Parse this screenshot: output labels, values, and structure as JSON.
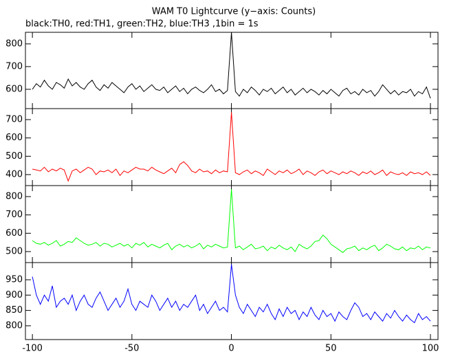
{
  "chart_data": {
    "type": "line",
    "title": "WAM T0 Lightcurve (y−axis: Counts)",
    "subtitle": "black:TH0, red:TH1, green:TH2, blue:TH3 ,1bin = 1s",
    "xlim": [
      -103.5,
      103.8
    ],
    "xticks": [
      -100,
      -50,
      0,
      50,
      100
    ],
    "x": [
      -100,
      -98,
      -96,
      -94,
      -92,
      -90,
      -88,
      -86,
      -84,
      -82,
      -80,
      -78,
      -76,
      -74,
      -72,
      -70,
      -68,
      -66,
      -64,
      -62,
      -60,
      -58,
      -56,
      -54,
      -52,
      -50,
      -48,
      -46,
      -44,
      -42,
      -40,
      -38,
      -36,
      -34,
      -32,
      -30,
      -28,
      -26,
      -24,
      -22,
      -20,
      -18,
      -16,
      -14,
      -12,
      -10,
      -8,
      -6,
      -4,
      -2,
      0,
      2,
      4,
      6,
      8,
      10,
      12,
      14,
      16,
      18,
      20,
      22,
      24,
      26,
      28,
      30,
      32,
      34,
      36,
      38,
      40,
      42,
      44,
      46,
      48,
      50,
      52,
      54,
      56,
      58,
      60,
      62,
      64,
      66,
      68,
      70,
      72,
      74,
      76,
      78,
      80,
      82,
      84,
      86,
      88,
      90,
      92,
      94,
      96,
      98,
      100
    ],
    "series": [
      {
        "color": "#000000",
        "ylim": [
          515,
          851
        ],
        "yticks": [
          600,
          700,
          800
        ],
        "values": [
          600,
          625,
          610,
          640,
          615,
          600,
          630,
          620,
          605,
          645,
          615,
          630,
          610,
          600,
          625,
          640,
          610,
          595,
          620,
          605,
          630,
          615,
          600,
          585,
          610,
          625,
          600,
          615,
          590,
          605,
          620,
          600,
          595,
          610,
          585,
          600,
          615,
          590,
          605,
          580,
          600,
          610,
          595,
          585,
          600,
          620,
          590,
          600,
          580,
          595,
          850,
          590,
          570,
          600,
          585,
          610,
          595,
          575,
          600,
          590,
          605,
          580,
          595,
          610,
          585,
          600,
          575,
          590,
          605,
          585,
          600,
          590,
          575,
          595,
          580,
          600,
          585,
          570,
          595,
          605,
          580,
          590,
          575,
          600,
          585,
          595,
          570,
          590,
          620,
          600,
          580,
          595,
          575,
          590,
          585,
          600,
          570,
          590,
          580,
          610,
          560
        ]
      },
      {
        "color": "#ff0000",
        "ylim": [
          340,
          760
        ],
        "yticks": [
          400,
          500,
          600,
          700
        ],
        "values": [
          430,
          425,
          420,
          440,
          415,
          430,
          420,
          435,
          425,
          365,
          420,
          430,
          410,
          425,
          440,
          430,
          400,
          420,
          415,
          425,
          410,
          430,
          395,
          420,
          410,
          425,
          440,
          430,
          430,
          420,
          440,
          425,
          415,
          405,
          420,
          435,
          410,
          455,
          470,
          450,
          420,
          410,
          430,
          415,
          420,
          405,
          425,
          410,
          420,
          415,
          740,
          410,
          400,
          415,
          425,
          405,
          420,
          410,
          395,
          430,
          415,
          400,
          420,
          410,
          425,
          405,
          415,
          430,
          400,
          420,
          410,
          395,
          415,
          425,
          405,
          420,
          410,
          400,
          415,
          405,
          420,
          410,
          395,
          415,
          405,
          420,
          400,
          410,
          425,
          395,
          415,
          405,
          400,
          410,
          395,
          415,
          405,
          410,
          400,
          415,
          395
        ]
      },
      {
        "color": "#00ff00",
        "ylim": [
          440,
          860
        ],
        "yticks": [
          500,
          600,
          700,
          800
        ],
        "values": [
          560,
          545,
          540,
          550,
          535,
          545,
          560,
          530,
          540,
          555,
          550,
          575,
          560,
          545,
          535,
          540,
          550,
          530,
          545,
          540,
          525,
          535,
          545,
          530,
          540,
          520,
          545,
          535,
          550,
          525,
          540,
          530,
          520,
          535,
          545,
          510,
          530,
          540,
          525,
          535,
          520,
          530,
          545,
          515,
          535,
          525,
          540,
          530,
          520,
          525,
          840,
          520,
          530,
          510,
          525,
          540,
          515,
          520,
          530,
          505,
          525,
          515,
          535,
          520,
          510,
          525,
          500,
          540,
          525,
          515,
          530,
          555,
          560,
          590,
          570,
          540,
          525,
          510,
          495,
          515,
          520,
          530,
          505,
          520,
          510,
          525,
          535,
          505,
          520,
          540,
          530,
          515,
          510,
          525,
          505,
          520,
          515,
          530,
          510,
          525,
          520
        ]
      },
      {
        "color": "#0000ff",
        "ylim": [
          755,
          1006
        ],
        "yticks": [
          800,
          850,
          900,
          950
        ],
        "values": [
          960,
          900,
          870,
          900,
          880,
          930,
          860,
          880,
          890,
          870,
          900,
          850,
          880,
          900,
          870,
          860,
          890,
          910,
          880,
          850,
          870,
          890,
          860,
          880,
          920,
          870,
          850,
          880,
          870,
          860,
          900,
          880,
          850,
          870,
          890,
          860,
          880,
          850,
          870,
          860,
          880,
          900,
          850,
          870,
          840,
          860,
          880,
          850,
          860,
          845,
          1000,
          900,
          860,
          840,
          870,
          850,
          830,
          860,
          845,
          870,
          840,
          820,
          855,
          830,
          860,
          840,
          850,
          820,
          845,
          830,
          860,
          835,
          820,
          850,
          830,
          840,
          815,
          845,
          830,
          820,
          850,
          875,
          860,
          830,
          840,
          820,
          845,
          830,
          815,
          840,
          825,
          850,
          830,
          815,
          835,
          820,
          810,
          840,
          820,
          830,
          815
        ]
      }
    ]
  }
}
